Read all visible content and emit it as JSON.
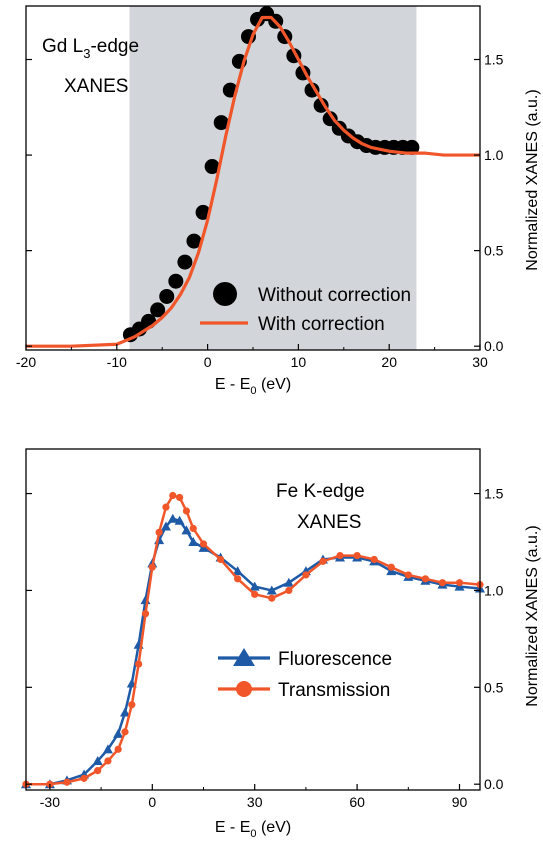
{
  "chart_data": [
    {
      "type": "scatter",
      "annotation": {
        "line1_pre": "Gd L",
        "line1_sub": "3",
        "line1_post": "-edge",
        "line2": "XANES"
      },
      "xlabel": {
        "pre": "E - E",
        "sub": "0",
        "post": " (eV)"
      },
      "ylabel": "Normalized XANES (a.u.)",
      "xlim": [
        -20,
        30
      ],
      "ylim": [
        -0.02,
        1.78
      ],
      "xticks": [
        -20,
        -10,
        0,
        10,
        20,
        30
      ],
      "xtick_labels": [
        "-20",
        "-10",
        "0",
        "10",
        "20",
        "30"
      ],
      "yticks": [
        0.0,
        0.5,
        1.0,
        1.5
      ],
      "ytick_labels": [
        "0.0",
        "0.5",
        "1.0",
        "1.5"
      ],
      "shaded_region": [
        -8.6,
        23.0
      ],
      "shade_color": "#d2d5d9",
      "legend": {
        "position": "lower-right"
      },
      "series": [
        {
          "name": "Without correction",
          "marker": "circle",
          "color": "#000000",
          "x": [
            -8.5,
            -7.5,
            -6.5,
            -5.5,
            -4.5,
            -3.5,
            -2.5,
            -1.5,
            -0.5,
            0.5,
            1.5,
            2.5,
            3.5,
            4.5,
            5.5,
            6.5,
            7.5,
            8.5,
            9.5,
            10.5,
            11.5,
            12.5,
            13.5,
            14.5,
            15.5,
            16.5,
            17.5,
            18.5,
            19.5,
            20.5,
            21.5,
            22.5
          ],
          "y": [
            0.06,
            0.09,
            0.13,
            0.19,
            0.26,
            0.34,
            0.44,
            0.55,
            0.7,
            0.94,
            1.17,
            1.34,
            1.49,
            1.62,
            1.71,
            1.74,
            1.7,
            1.62,
            1.52,
            1.43,
            1.34,
            1.26,
            1.19,
            1.14,
            1.1,
            1.07,
            1.05,
            1.04,
            1.04,
            1.04,
            1.04,
            1.04
          ]
        },
        {
          "name": "With correction",
          "marker": "line",
          "color": "#f0562a",
          "x": [
            -20,
            -15,
            -10,
            -9,
            -8,
            -7,
            -6,
            -5,
            -4,
            -3,
            -2,
            -1,
            0,
            1,
            2,
            3,
            4,
            5,
            6,
            7,
            8,
            9,
            10,
            11,
            12,
            13,
            14,
            15,
            16,
            17,
            18,
            19,
            20,
            22,
            24,
            26,
            28,
            30
          ],
          "y": [
            0.0,
            0.0,
            0.01,
            0.03,
            0.05,
            0.08,
            0.11,
            0.15,
            0.2,
            0.27,
            0.36,
            0.49,
            0.66,
            0.87,
            1.1,
            1.31,
            1.49,
            1.63,
            1.72,
            1.72,
            1.67,
            1.59,
            1.5,
            1.41,
            1.33,
            1.25,
            1.18,
            1.13,
            1.09,
            1.06,
            1.04,
            1.03,
            1.02,
            1.01,
            1.01,
            1.0,
            1.0,
            1.0
          ]
        }
      ]
    },
    {
      "type": "scatter",
      "annotation": {
        "line1": "Fe K-edge",
        "line2": "XANES"
      },
      "xlabel": {
        "pre": "E - E",
        "sub": "0",
        "post": " (eV)"
      },
      "ylabel": "Normalized XANES (a.u.)",
      "xlim": [
        -37,
        96
      ],
      "ylim": [
        -0.03,
        1.73
      ],
      "xticks": [
        -30,
        0,
        30,
        60,
        90
      ],
      "xtick_labels": [
        "-30",
        "0",
        "30",
        "60",
        "90"
      ],
      "yticks": [
        0.0,
        0.5,
        1.0,
        1.5
      ],
      "ytick_labels": [
        "0.0",
        "0.5",
        "1.0",
        "1.5"
      ],
      "legend": {
        "position": "lower-right"
      },
      "series": [
        {
          "name": "Fluorescence",
          "marker": "triangle",
          "color": "#1f5aa6",
          "x": [
            -37,
            -30,
            -25,
            -20,
            -16,
            -13,
            -10,
            -8,
            -6,
            -4,
            -2,
            0,
            2,
            4,
            6,
            8,
            10,
            12,
            15,
            20,
            25,
            30,
            35,
            40,
            45,
            50,
            55,
            60,
            65,
            70,
            75,
            80,
            85,
            90,
            96
          ],
          "y": [
            0.0,
            0.0,
            0.02,
            0.05,
            0.12,
            0.18,
            0.26,
            0.37,
            0.52,
            0.72,
            0.95,
            1.14,
            1.26,
            1.33,
            1.37,
            1.36,
            1.31,
            1.25,
            1.22,
            1.17,
            1.1,
            1.02,
            1.0,
            1.04,
            1.1,
            1.16,
            1.17,
            1.17,
            1.15,
            1.1,
            1.07,
            1.05,
            1.03,
            1.02,
            1.01
          ]
        },
        {
          "name": "Transmission",
          "marker": "circle",
          "color": "#f0562a",
          "x": [
            -37,
            -30,
            -25,
            -20,
            -16,
            -13,
            -10,
            -8,
            -6,
            -4,
            -2,
            0,
            2,
            4,
            6,
            8,
            10,
            12,
            15,
            20,
            25,
            30,
            35,
            40,
            45,
            50,
            55,
            60,
            65,
            70,
            75,
            80,
            85,
            90,
            96
          ],
          "y": [
            0.0,
            0.0,
            0.01,
            0.03,
            0.07,
            0.12,
            0.18,
            0.27,
            0.41,
            0.62,
            0.88,
            1.12,
            1.3,
            1.43,
            1.49,
            1.48,
            1.41,
            1.32,
            1.24,
            1.16,
            1.06,
            0.98,
            0.96,
            1.0,
            1.08,
            1.15,
            1.18,
            1.18,
            1.16,
            1.12,
            1.08,
            1.06,
            1.04,
            1.04,
            1.03
          ]
        }
      ]
    }
  ]
}
